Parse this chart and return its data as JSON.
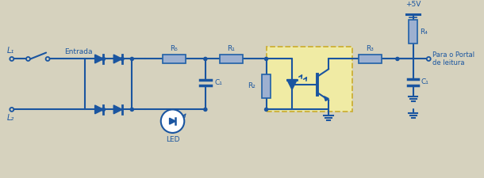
{
  "bg_color": "#d6d2be",
  "line_color": "#2060a8",
  "line_width": 1.5,
  "component_fill": "#9db0d0",
  "component_edge": "#2060a8",
  "dashed_box_color": "#f5f0a0",
  "dashed_box_edge": "#c8a820",
  "text_color": "#2060a8",
  "dark_blue": "#1a55a0",
  "label_color": "#2060a8",
  "labels": {
    "L1": "L₁",
    "L2": "L₂",
    "Entrada": "Entrada",
    "R5": "R₅",
    "R1": "R₁",
    "R2": "R₂",
    "R3": "R₃",
    "R4": "R₄",
    "C1_left": "C₁",
    "C1_right": "C₁",
    "LED": "LED",
    "plus5V": "+5V",
    "portal": "Para o Portal\nde leitura"
  }
}
